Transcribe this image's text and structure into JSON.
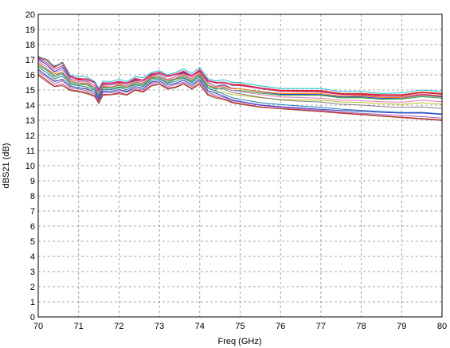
{
  "chart_data": {
    "type": "line",
    "title": "",
    "xlabel": "Freq (GHz)",
    "ylabel": "dBS21 (dB)",
    "xlim": [
      70,
      80
    ],
    "ylim": [
      0,
      20
    ],
    "x_ticks": [
      "70",
      "71",
      "72",
      "73",
      "74",
      "75",
      "76",
      "77",
      "78",
      "79",
      "80"
    ],
    "y_ticks": [
      "0",
      "1",
      "2",
      "3",
      "4",
      "5",
      "6",
      "7",
      "8",
      "9",
      "10",
      "11",
      "12",
      "13",
      "14",
      "15",
      "16",
      "17",
      "18",
      "19",
      "20"
    ],
    "grid": true,
    "legend": "none",
    "x": [
      70,
      70.2,
      70.4,
      70.6,
      70.8,
      71,
      71.2,
      71.4,
      71.5,
      71.6,
      71.8,
      72,
      72.2,
      72.4,
      72.6,
      72.8,
      73,
      73.2,
      73.4,
      73.6,
      73.8,
      74,
      74.2,
      74.4,
      74.6,
      74.8,
      75,
      75.5,
      76,
      76.5,
      77,
      77.5,
      78,
      78.5,
      79,
      79.5,
      80
    ],
    "envelope": {
      "upper": [
        17.3,
        17.0,
        16.6,
        16.8,
        16.0,
        15.9,
        15.9,
        15.6,
        15.1,
        15.6,
        15.6,
        15.7,
        15.6,
        15.9,
        15.8,
        16.2,
        16.3,
        16.0,
        16.2,
        16.4,
        16.1,
        16.5,
        15.8,
        15.6,
        15.7,
        15.5,
        15.5,
        15.3,
        15.1,
        15.1,
        15.1,
        14.9,
        14.9,
        14.8,
        14.8,
        15.0,
        14.9
      ],
      "lower": [
        15.9,
        15.5,
        15.1,
        15.2,
        14.9,
        14.8,
        14.7,
        14.5,
        14.1,
        14.6,
        14.6,
        14.7,
        14.6,
        14.9,
        14.8,
        15.2,
        15.3,
        15.0,
        15.1,
        15.3,
        15.0,
        15.3,
        14.6,
        14.4,
        14.3,
        14.1,
        14.0,
        13.8,
        13.7,
        13.6,
        13.5,
        13.4,
        13.3,
        13.2,
        13.1,
        13.0,
        12.9
      ]
    },
    "series": [
      {
        "color": "#d62728",
        "offsets": [
          0.9,
          1.0,
          0.95,
          1.0,
          0.9,
          0.8,
          0.85,
          0.9,
          0.9,
          0.8,
          0.85,
          0.8,
          0.85,
          0.8,
          0.85,
          0.8,
          0.85,
          0.9,
          0.85,
          0.8,
          0.85,
          0.8,
          0.85,
          0.9,
          0.85,
          0.9,
          0.9,
          0.88,
          0.9,
          0.9,
          0.9,
          0.9,
          0.9,
          0.92,
          0.92,
          0.92,
          0.92
        ]
      },
      {
        "color": "#1f3fbf",
        "offsets": [
          0.8,
          0.8,
          0.75,
          0.8,
          0.75,
          0.7,
          0.75,
          0.7,
          0.75,
          0.7,
          0.75,
          0.7,
          0.7,
          0.75,
          0.7,
          0.7,
          0.75,
          0.7,
          0.7,
          0.75,
          0.7,
          0.7,
          0.75,
          0.7,
          0.75,
          0.72,
          0.72,
          0.72,
          0.72,
          0.74,
          0.75,
          0.76,
          0.78,
          0.78,
          0.8,
          0.82,
          0.82
        ]
      },
      {
        "color": "#2ca02c",
        "offsets": [
          0.5,
          0.55,
          0.5,
          0.55,
          0.5,
          0.5,
          0.55,
          0.5,
          0.5,
          0.55,
          0.5,
          0.5,
          0.55,
          0.5,
          0.5,
          0.55,
          0.5,
          0.5,
          0.55,
          0.5,
          0.5,
          0.55,
          0.5,
          0.55,
          0.6,
          0.62,
          0.64,
          0.66,
          0.68,
          0.7,
          0.72,
          0.72,
          0.74,
          0.74,
          0.76,
          0.78,
          0.78
        ]
      },
      {
        "color": "#17becf",
        "offsets": [
          0.95,
          0.98,
          1.0,
          0.98,
          0.95,
          1.0,
          0.98,
          0.96,
          1.0,
          0.98,
          0.96,
          1.0,
          0.96,
          0.98,
          1.0,
          0.96,
          0.98,
          1.0,
          0.96,
          1.0,
          0.98,
          1.0,
          0.96,
          1.0,
          0.98,
          1.0,
          1.0,
          0.98,
          1.0,
          1.0,
          1.0,
          1.0,
          1.0,
          0.98,
          1.0,
          1.0,
          1.0
        ]
      },
      {
        "color": "#9467bd",
        "offsets": [
          0.2,
          0.25,
          0.2,
          0.25,
          0.2,
          0.25,
          0.2,
          0.2,
          0.2,
          0.25,
          0.2,
          0.2,
          0.25,
          0.2,
          0.2,
          0.25,
          0.2,
          0.2,
          0.25,
          0.2,
          0.2,
          0.25,
          0.2,
          0.2,
          0.15,
          0.14,
          0.14,
          0.12,
          0.12,
          0.1,
          0.1,
          0.1,
          0.1,
          0.12,
          0.12,
          0.12,
          0.12
        ]
      },
      {
        "color": "#ff7f0e",
        "offsets": [
          0.65,
          0.6,
          0.65,
          0.6,
          0.65,
          0.6,
          0.65,
          0.6,
          0.6,
          0.65,
          0.6,
          0.65,
          0.6,
          0.65,
          0.6,
          0.65,
          0.6,
          0.65,
          0.6,
          0.65,
          0.6,
          0.65,
          0.6,
          0.65,
          0.7,
          0.7,
          0.72,
          0.74,
          0.76,
          0.78,
          0.8,
          0.8,
          0.82,
          0.82,
          0.82,
          0.84,
          0.84
        ]
      },
      {
        "color": "#bcbd22",
        "offsets": [
          0.35,
          0.3,
          0.35,
          0.3,
          0.35,
          0.3,
          0.35,
          0.3,
          0.3,
          0.35,
          0.3,
          0.35,
          0.3,
          0.35,
          0.3,
          0.35,
          0.3,
          0.35,
          0.3,
          0.35,
          0.3,
          0.35,
          0.3,
          0.35,
          0.4,
          0.42,
          0.44,
          0.46,
          0.48,
          0.5,
          0.52,
          0.54,
          0.55,
          0.56,
          0.56,
          0.58,
          0.58
        ]
      },
      {
        "color": "#8c564b",
        "offsets": [
          0.05,
          0.05,
          0.08,
          0.05,
          0.05,
          0.08,
          0.05,
          0.05,
          0.0,
          0.05,
          0.08,
          0.05,
          0.05,
          0.08,
          0.05,
          0.05,
          0.08,
          0.05,
          0.05,
          0.08,
          0.05,
          0.05,
          0.05,
          0.05,
          0.05,
          0.04,
          0.04,
          0.04,
          0.04,
          0.04,
          0.04,
          0.04,
          0.04,
          0.04,
          0.04,
          0.04,
          0.04
        ]
      },
      {
        "color": "#c83296",
        "offsets": [
          0.85,
          0.88,
          0.85,
          0.88,
          0.85,
          0.88,
          0.85,
          0.88,
          0.85,
          0.88,
          0.85,
          0.88,
          0.85,
          0.88,
          0.85,
          0.88,
          0.85,
          0.88,
          0.85,
          0.88,
          0.85,
          0.88,
          0.85,
          0.88,
          0.86,
          0.86,
          0.86,
          0.86,
          0.86,
          0.86,
          0.86,
          0.86,
          0.86,
          0.86,
          0.86,
          0.86,
          0.86
        ]
      },
      {
        "color": "#1f77b4",
        "offsets": [
          0.42,
          0.45,
          0.42,
          0.45,
          0.42,
          0.45,
          0.42,
          0.45,
          0.42,
          0.45,
          0.42,
          0.45,
          0.42,
          0.45,
          0.42,
          0.45,
          0.42,
          0.45,
          0.42,
          0.45,
          0.42,
          0.45,
          0.42,
          0.45,
          0.3,
          0.28,
          0.26,
          0.24,
          0.24,
          0.22,
          0.22,
          0.22,
          0.22,
          0.24,
          0.24,
          0.26,
          0.26
        ]
      },
      {
        "color": "#e377c2",
        "offsets": [
          0.72,
          0.7,
          0.72,
          0.7,
          0.72,
          0.7,
          0.72,
          0.7,
          0.72,
          0.7,
          0.72,
          0.7,
          0.72,
          0.7,
          0.72,
          0.7,
          0.72,
          0.7,
          0.72,
          0.7,
          0.72,
          0.7,
          0.72,
          0.7,
          0.64,
          0.62,
          0.6,
          0.6,
          0.6,
          0.6,
          0.6,
          0.62,
          0.62,
          0.64,
          0.64,
          0.66,
          0.66
        ]
      },
      {
        "color": "#7f7f7f",
        "offsets": [
          0.58,
          0.6,
          0.58,
          0.6,
          0.58,
          0.6,
          0.58,
          0.6,
          0.58,
          0.6,
          0.58,
          0.6,
          0.58,
          0.6,
          0.58,
          0.6,
          0.58,
          0.6,
          0.58,
          0.6,
          0.58,
          0.6,
          0.58,
          0.6,
          0.54,
          0.52,
          0.5,
          0.48,
          0.46,
          0.44,
          0.44,
          0.44,
          0.44,
          0.44,
          0.44,
          0.44,
          0.44
        ]
      },
      {
        "color": "#3b3bd6",
        "offsets": [
          0.3,
          0.32,
          0.3,
          0.32,
          0.3,
          0.32,
          0.3,
          0.32,
          0.3,
          0.32,
          0.3,
          0.32,
          0.3,
          0.32,
          0.3,
          0.32,
          0.3,
          0.32,
          0.3,
          0.32,
          0.3,
          0.32,
          0.3,
          0.32,
          0.2,
          0.18,
          0.16,
          0.14,
          0.14,
          0.14,
          0.14,
          0.16,
          0.18,
          0.2,
          0.22,
          0.24,
          0.24
        ]
      },
      {
        "color": "#d62728",
        "offsets": [
          0.1,
          0.12,
          0.1,
          0.12,
          0.1,
          0.12,
          0.1,
          0.12,
          0.1,
          0.12,
          0.1,
          0.12,
          0.1,
          0.12,
          0.1,
          0.12,
          0.1,
          0.12,
          0.1,
          0.12,
          0.1,
          0.12,
          0.1,
          0.12,
          0.08,
          0.08,
          0.07,
          0.06,
          0.06,
          0.06,
          0.06,
          0.06,
          0.06,
          0.06,
          0.06,
          0.06,
          0.06
        ]
      }
    ]
  }
}
